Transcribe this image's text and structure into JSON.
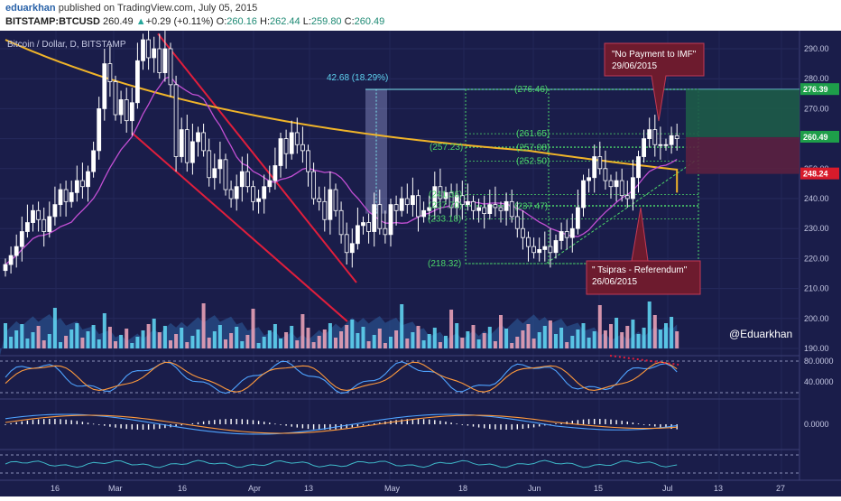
{
  "header": {
    "author": "eduarkhan",
    "published": "published on TradingView.com, July 05, 2015",
    "symbol": "BITSTAMP:BTCUSD",
    "last": "260.49",
    "change": "+0.29 (+0.11%)",
    "o_label": "O:",
    "o": "260.16",
    "h_label": "H:",
    "h": "262.44",
    "l_label": "L:",
    "l": "259.80",
    "c_label": "C:",
    "c": "260.49"
  },
  "chart_data": {
    "type": "candlestick",
    "title": "Bitcoin / Dollar, D, BITSTAMP",
    "watermark": "@Eduarkhan",
    "x_labels": [
      "16",
      "Mar",
      "16",
      "Apr",
      "13",
      "May",
      "18",
      "Jun",
      "15",
      "Jul",
      "13",
      "27"
    ],
    "price_ticks": [
      "290.00",
      "280.00",
      "270.00",
      "260.00",
      "250.00",
      "240.00",
      "230.00",
      "220.00",
      "210.00",
      "200.00",
      "190.00"
    ],
    "price_ylim": [
      185,
      296
    ],
    "price_markers": [
      {
        "label": "276.39",
        "value": 276.39,
        "color": "#1e9e4a"
      },
      {
        "label": "260.49",
        "value": 260.49,
        "color": "#1e9e4a"
      },
      {
        "label": "248.24",
        "value": 248.24,
        "color": "#d81b2b"
      }
    ],
    "measure_label": "42.68 (18.29%)",
    "fib_levels": [
      {
        "label": "(276.46)",
        "value": 276.46
      },
      {
        "label": "(261.65)",
        "value": 261.65
      },
      {
        "label": "(257.08)",
        "value": 257.08
      },
      {
        "label": "(252.50)",
        "value": 252.5
      },
      {
        "label": "(257.23)",
        "value": 257.23
      },
      {
        "label": "(241.36)",
        "value": 241.36
      },
      {
        "label": "(237.70)",
        "value": 237.7
      },
      {
        "label": "(237.47)",
        "value": 237.47
      },
      {
        "label": "(233.18)",
        "value": 233.18
      },
      {
        "label": "(218.32)",
        "value": 218.32
      }
    ],
    "annotations": [
      {
        "text": "\"No Payment to IMF\"",
        "date": "29/06/2015"
      },
      {
        "text": "\" Tsipras - Referendum\"",
        "date": "26/06/2015"
      }
    ],
    "stoch_ticks": [
      "80.0000",
      "40.0000"
    ],
    "macd_ticks": [
      "0.0000"
    ],
    "closes": [
      218,
      221,
      224,
      229,
      232,
      236,
      233,
      229,
      234,
      238,
      243,
      239,
      242,
      246,
      244,
      249,
      256,
      270,
      285,
      279,
      268,
      273,
      266,
      272,
      286,
      293,
      287,
      290,
      282,
      290,
      278,
      254,
      263,
      252,
      259,
      262,
      256,
      247,
      250,
      253,
      243,
      240,
      244,
      249,
      244,
      239,
      240,
      244,
      246,
      251,
      260,
      255,
      262,
      258,
      256,
      249,
      240,
      239,
      233,
      243,
      236,
      228,
      222,
      225,
      231,
      232,
      229,
      238,
      230,
      228,
      238,
      236,
      240,
      238,
      241,
      234,
      236,
      237,
      244,
      240,
      242,
      237,
      241,
      238,
      239,
      236,
      237,
      235,
      238,
      237,
      236,
      239,
      234,
      230,
      227,
      224,
      222,
      223,
      224,
      222,
      226,
      229,
      227,
      230,
      237,
      246,
      247,
      254,
      250,
      246,
      244,
      246,
      241,
      240,
      247,
      254,
      260,
      263,
      258,
      258,
      258,
      261,
      260
    ]
  }
}
